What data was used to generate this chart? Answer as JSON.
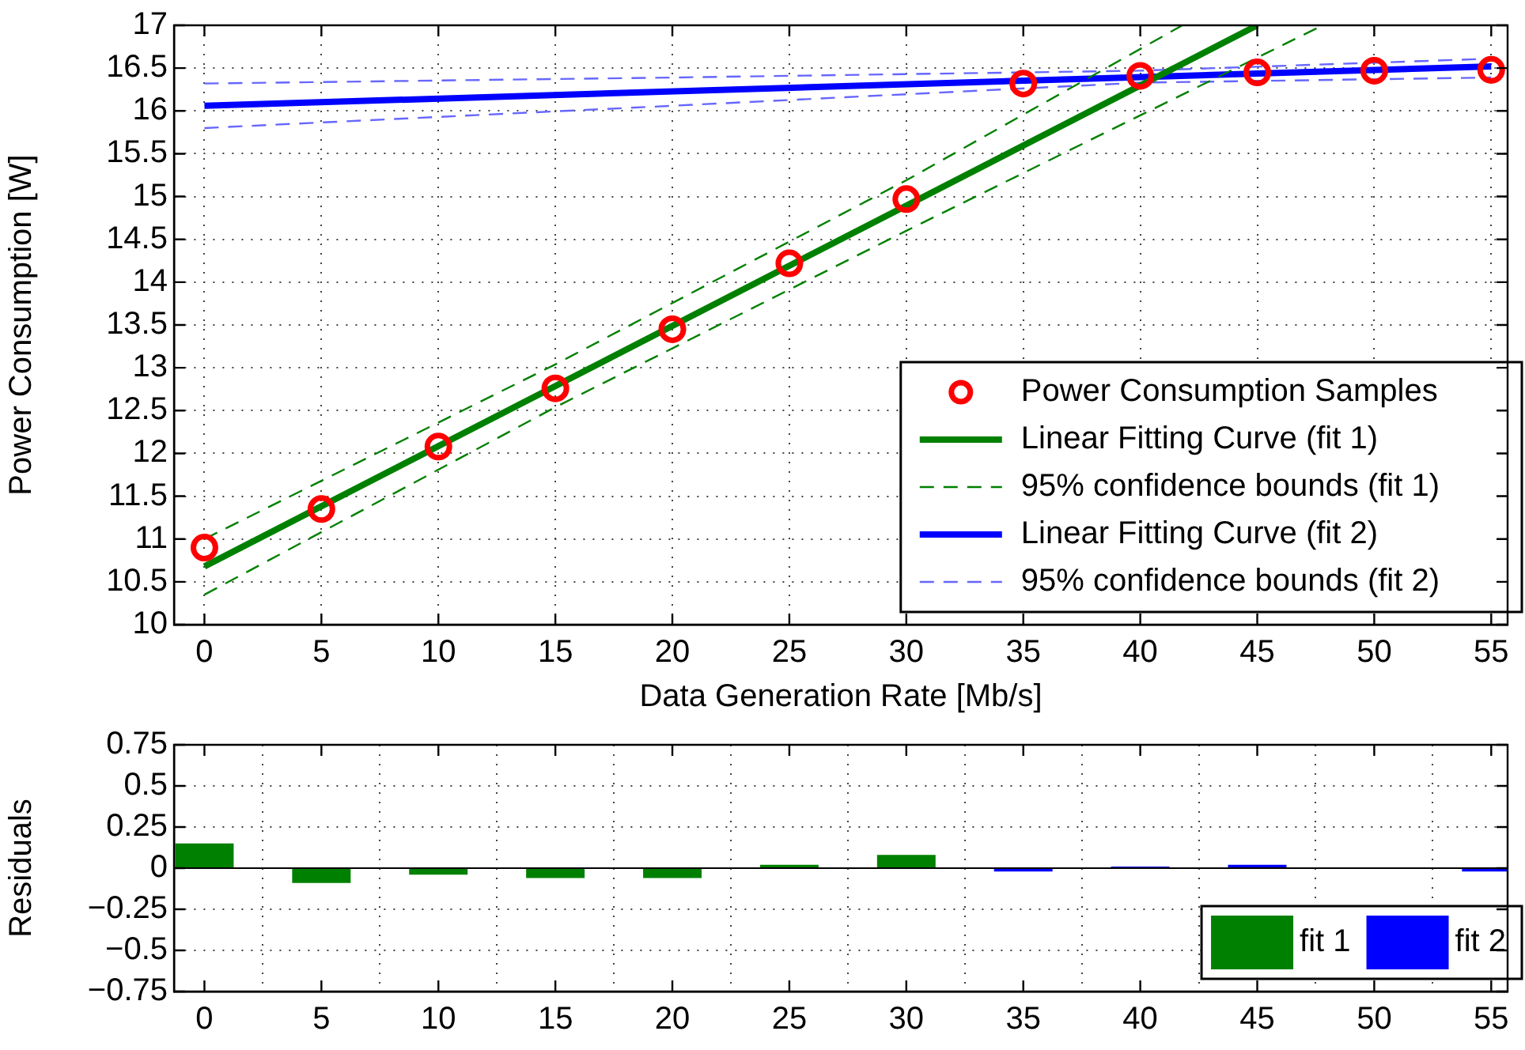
{
  "chart_data": [
    {
      "type": "scatter",
      "xlabel": "Data Generation Rate [Mb/s]",
      "ylabel": "Power Consumption [W]",
      "xlim": [
        -1.3,
        55.7
      ],
      "xticks": [
        0,
        5,
        10,
        15,
        20,
        25,
        30,
        35,
        40,
        45,
        50,
        55
      ],
      "ylim": [
        10,
        17
      ],
      "yticks": [
        10,
        10.5,
        11,
        11.5,
        12,
        12.5,
        13,
        13.5,
        14,
        14.5,
        15,
        15.5,
        16,
        16.5,
        17
      ],
      "grid": true,
      "legend": "bottom right",
      "series": [
        {
          "name": "Power Consumption Samples",
          "type": "scatter",
          "marker": "circle",
          "color": "#ff0000",
          "x": [
            0,
            5,
            10,
            15,
            20,
            25,
            30,
            35,
            40,
            45,
            50,
            55
          ],
          "values": [
            10.9,
            11.35,
            12.08,
            12.76,
            13.45,
            14.22,
            14.97,
            16.32,
            16.41,
            16.45,
            16.47,
            16.48
          ]
        },
        {
          "name": "Linear Fitting Curve (fit 1)",
          "type": "line",
          "color": "#008000",
          "x": [
            0,
            45
          ],
          "values": [
            10.68,
            17
          ]
        },
        {
          "name": "95% confidence bounds (fit 1)",
          "type": "line",
          "line_style": "dashed",
          "color": "#008000",
          "x": [
            0,
            15,
            30,
            41.8
          ],
          "values": [
            11.0,
            13.04,
            15.19,
            17
          ]
        },
        {
          "type": "line",
          "line_style": "dashed",
          "color": "#008000",
          "x": [
            0,
            15,
            30,
            47.8
          ],
          "values": [
            10.35,
            12.54,
            14.6,
            17
          ]
        },
        {
          "name": "Linear Fitting Curve (fit 2)",
          "type": "line",
          "color": "#0000ff",
          "x": [
            0,
            55
          ],
          "values": [
            16.06,
            16.52
          ]
        },
        {
          "name": "95% confidence bounds (fit 2)",
          "type": "line",
          "line_style": "dashed",
          "color": "#6666ff",
          "x": [
            0,
            20,
            40,
            55
          ],
          "values": [
            16.32,
            16.39,
            16.47,
            16.61
          ]
        },
        {
          "type": "line",
          "line_style": "dashed",
          "color": "#6666ff",
          "x": [
            0,
            20,
            40,
            55
          ],
          "values": [
            15.8,
            16.06,
            16.33,
            16.39
          ]
        }
      ]
    },
    {
      "type": "bar",
      "ylabel": "Residuals",
      "x": [
        0,
        5,
        10,
        15,
        20,
        25,
        30,
        35,
        40,
        45,
        50,
        55
      ],
      "xlim": [
        -1.3,
        55.7
      ],
      "xticks": [
        0,
        5,
        10,
        15,
        20,
        25,
        30,
        35,
        40,
        45,
        50,
        55
      ],
      "ylim": [
        -0.75,
        0.75
      ],
      "yticks": [
        {
          "value": -0.75,
          "label": "−0.75"
        },
        {
          "value": -0.5,
          "label": "−0.5"
        },
        {
          "value": -0.25,
          "label": "−0.25"
        },
        0,
        0.25,
        0.5,
        0.75
      ],
      "grid": true,
      "legend": "bottom right",
      "series": [
        {
          "name": "fit 1",
          "color": "#008000",
          "values": [
            0.15,
            -0.09,
            -0.04,
            -0.06,
            -0.06,
            0.02,
            0.08,
            null,
            null,
            null,
            null,
            null
          ]
        },
        {
          "name": "fit 2",
          "color": "#0000ff",
          "values": [
            null,
            null,
            null,
            null,
            null,
            null,
            null,
            -0.02,
            0.01,
            0.02,
            0,
            -0.02
          ]
        }
      ]
    }
  ]
}
